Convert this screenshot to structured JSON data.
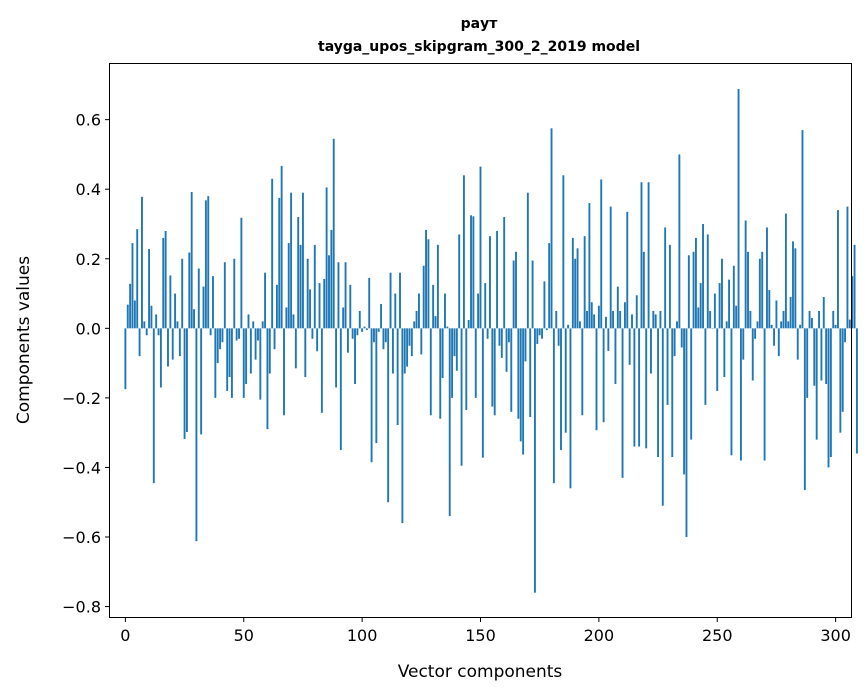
{
  "chart_data": {
    "type": "bar",
    "title_lines": [
      "раут",
      "tayga_upos_skipgram_300_2_2019 model"
    ],
    "xlabel": "Vector components",
    "ylabel": "Components values",
    "xlim": [
      -6.5,
      306.5
    ],
    "ylim": [
      -0.83,
      0.76
    ],
    "xticks": [
      0,
      50,
      100,
      150,
      200,
      250,
      300
    ],
    "xtick_labels": [
      "0",
      "50",
      "100",
      "150",
      "200",
      "250",
      "300"
    ],
    "yticks": [
      -0.8,
      -0.6,
      -0.4,
      -0.2,
      0.0,
      0.2,
      0.4,
      0.6
    ],
    "ytick_labels": [
      "−0.8",
      "−0.6",
      "−0.4",
      "−0.2",
      "0.0",
      "0.2",
      "0.4",
      "0.6"
    ],
    "bar_color": "#1f77b4",
    "values": [
      -0.175,
      0.068,
      0.128,
      0.245,
      0.08,
      0.285,
      -0.08,
      0.378,
      0.02,
      -0.02,
      0.228,
      0.065,
      -0.445,
      0.04,
      -0.02,
      -0.17,
      0.26,
      0.28,
      -0.11,
      0.152,
      -0.09,
      0.1,
      0.02,
      -0.08,
      0.2,
      -0.318,
      -0.298,
      0.218,
      0.392,
      0.055,
      -0.612,
      0.172,
      -0.305,
      0.12,
      0.368,
      0.38,
      -0.02,
      0.15,
      -0.2,
      -0.1,
      -0.06,
      -0.04,
      0.19,
      -0.18,
      -0.14,
      -0.2,
      0.2,
      -0.035,
      -0.03,
      0.318,
      -0.2,
      -0.16,
      0.04,
      -0.13,
      0.02,
      -0.09,
      -0.035,
      -0.205,
      0.02,
      0.16,
      -0.29,
      -0.13,
      0.43,
      -0.06,
      0.125,
      0.375,
      0.467,
      -0.25,
      0.06,
      0.245,
      0.39,
      0.04,
      -0.115,
      0.32,
      0.24,
      0.39,
      -0.14,
      0.2,
      0.112,
      -0.03,
      0.24,
      -0.066,
      0.13,
      -0.243,
      0.142,
      0.405,
      0.21,
      0.283,
      0.545,
      -0.17,
      0.19,
      -0.35,
      0.06,
      0.19,
      -0.07,
      0.125,
      -0.03,
      -0.16,
      -0.02,
      0.05,
      -0.01,
      0.005,
      -0.005,
      0.145,
      -0.385,
      -0.04,
      -0.33,
      -0.01,
      0.07,
      -0.06,
      -0.04,
      -0.5,
      0.16,
      -0.13,
      0.1,
      -0.278,
      0.16,
      -0.56,
      -0.13,
      -0.11,
      -0.05,
      -0.08,
      0.02,
      0.05,
      0.1,
      -0.075,
      0.18,
      0.283,
      0.256,
      -0.25,
      0.125,
      0.035,
      0.24,
      -0.26,
      -0.143,
      0.1,
      0.005,
      -0.54,
      -0.2,
      -0.08,
      -0.122,
      0.27,
      -0.395,
      0.44,
      -0.235,
      0.024,
      0.325,
      0.322,
      -0.2,
      0.1,
      0.465,
      -0.372,
      0.13,
      -0.03,
      0.265,
      -0.225,
      -0.25,
      0.28,
      -0.05,
      -0.085,
      0.32,
      -0.125,
      -0.04,
      -0.24,
      0.195,
      0.22,
      -0.26,
      -0.325,
      -0.363,
      -0.095,
      0.39,
      -0.255,
      0.195,
      -0.76,
      -0.045,
      -0.02,
      -0.03,
      0.135,
      -0.005,
      0.245,
      0.575,
      -0.445,
      0.05,
      -0.05,
      -0.35,
      0.44,
      -0.3,
      0.01,
      -0.46,
      0.26,
      0.2,
      0.23,
      0.02,
      -0.25,
      0.265,
      0.05,
      0.36,
      0.075,
      0.04,
      -0.293,
      0.065,
      0.428,
      -0.27,
      0.033,
      -0.065,
      0.35,
      0.05,
      -0.16,
      0.12,
      0.05,
      -0.43,
      0.075,
      0.335,
      -0.105,
      0.04,
      -0.34,
      0.095,
      -0.34,
      0.42,
      0.22,
      -0.345,
      0.42,
      -0.13,
      0.05,
      0.04,
      -0.37,
      0.05,
      -0.51,
      0.29,
      -0.22,
      0.24,
      -0.37,
      -0.08,
      0.02,
      0.5,
      -0.055,
      -0.42,
      -0.6,
      0.21,
      -0.32,
      0.22,
      0.26,
      0.06,
      0.13,
      0.3,
      -0.22,
      0.27,
      0.05,
      0.0,
      0.1,
      -0.18,
      0.13,
      0.2,
      -0.14,
      0.02,
      0.14,
      -0.365,
      0.18,
      0.065,
      0.688,
      -0.38,
      -0.09,
      0.31,
      0.22,
      0.05,
      -0.15,
      -0.03,
      0.02,
      0.2,
      0.22,
      -0.38,
      0.29,
      0.11,
      0.01,
      -0.05,
      0.08,
      -0.08,
      0.02,
      0.05,
      0.33,
      0.02,
      0.09,
      0.25,
      0.23,
      -0.09,
      0.01,
      0.57,
      -0.465,
      -0.2,
      0.05,
      0.03,
      -0.165,
      -0.32,
      0.05,
      -0.15,
      0.09,
      -0.16,
      -0.4,
      -0.37,
      0.05,
      0.01,
      0.34,
      -0.3,
      -0.24,
      -0.04,
      0.35,
      0.025,
      0.15,
      0.24,
      -0.36
    ]
  }
}
